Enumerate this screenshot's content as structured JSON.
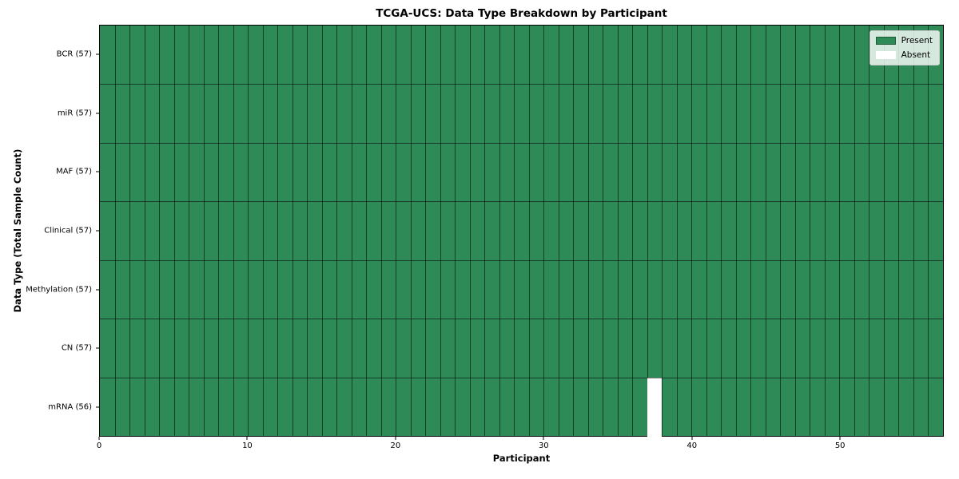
{
  "chart_data": {
    "type": "heatmap",
    "title": "TCGA-UCS: Data Type Breakdown by Participant",
    "xlabel": "Participant",
    "ylabel": "Data Type (Total Sample Count)",
    "n_participants": 57,
    "x_ticks": [
      0,
      10,
      20,
      30,
      40,
      50
    ],
    "rows": [
      {
        "data_type": "BCR",
        "count": 57,
        "tick_label": "BCR (57)",
        "absent_participants": []
      },
      {
        "data_type": "miR",
        "count": 57,
        "tick_label": "miR (57)",
        "absent_participants": []
      },
      {
        "data_type": "MAF",
        "count": 57,
        "tick_label": "MAF (57)",
        "absent_participants": []
      },
      {
        "data_type": "Clinical",
        "count": 57,
        "tick_label": "Clinical (57)",
        "absent_participants": []
      },
      {
        "data_type": "Methylation",
        "count": 57,
        "tick_label": "Methylation (57)",
        "absent_participants": []
      },
      {
        "data_type": "CN",
        "count": 57,
        "tick_label": "CN (57)",
        "absent_participants": []
      },
      {
        "data_type": "mRNA",
        "count": 56,
        "tick_label": "mRNA (56)",
        "absent_participants": [
          37
        ]
      }
    ],
    "legend": {
      "position": "upper right",
      "entries": [
        {
          "label": "Present",
          "color": "#2e8b57"
        },
        {
          "label": "Absent",
          "color": "#ffffff"
        }
      ]
    },
    "colors": {
      "present": "#2e8b57",
      "absent": "#ffffff",
      "cell_border": "rgba(0,0,0,0.55)",
      "spine": "#000000"
    }
  }
}
